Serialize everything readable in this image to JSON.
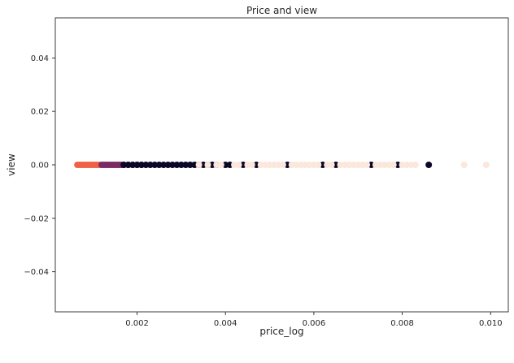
{
  "chart_data": {
    "type": "scatter",
    "title": "Price and view",
    "xlabel": "price_log",
    "ylabel": "view",
    "xlim": [
      0.00015,
      0.0104
    ],
    "ylim": [
      -0.055,
      0.055
    ],
    "x_ticks": [
      0.002,
      0.004,
      0.006,
      0.008,
      0.01
    ],
    "x_tick_labels": [
      "0.002",
      "0.004",
      "0.006",
      "0.008",
      "0.010"
    ],
    "y_ticks": [
      -0.04,
      -0.02,
      0.0,
      0.02,
      0.04
    ],
    "y_tick_labels": [
      "−0.04",
      "−0.02",
      "0.00",
      "0.02",
      "0.04"
    ],
    "grid": false,
    "colors": {
      "cluster_orange": "#ef6147",
      "cluster_purple": "#7a2a64",
      "cluster_dark": "#0b0726",
      "cluster_cream": "#fbe7db"
    },
    "series": [
      {
        "color": "#ef6147",
        "x": [
          0.00065,
          0.0007,
          0.00075,
          0.0008,
          0.00085,
          0.0009,
          0.00095,
          0.001,
          0.00105,
          0.0011,
          0.00115
        ],
        "y": [
          0,
          0,
          0,
          0,
          0,
          0,
          0,
          0,
          0,
          0,
          0
        ]
      },
      {
        "color": "#7a2a64",
        "x": [
          0.0012,
          0.00125,
          0.0013,
          0.00135,
          0.0014,
          0.00145,
          0.0015,
          0.00155,
          0.0016,
          0.00165,
          0.0017,
          0.0018,
          0.0019,
          0.002,
          0.0021
        ],
        "y": [
          0,
          0,
          0,
          0,
          0,
          0,
          0,
          0,
          0,
          0,
          0,
          0,
          0,
          0,
          0
        ]
      },
      {
        "color": "#0b0726",
        "x": [
          0.0017,
          0.0018,
          0.0019,
          0.002,
          0.0021,
          0.0022,
          0.0023,
          0.0024,
          0.0025,
          0.0026,
          0.0027,
          0.0028,
          0.0029,
          0.003,
          0.0031,
          0.0032,
          0.0033,
          0.0034,
          0.0035,
          0.0036,
          0.0037,
          0.0038,
          0.004,
          0.0041,
          0.0044,
          0.0047,
          0.0054,
          0.0062,
          0.0065,
          0.0073,
          0.0079,
          0.0086
        ],
        "y": [
          0,
          0,
          0,
          0,
          0,
          0,
          0,
          0,
          0,
          0,
          0,
          0,
          0,
          0,
          0,
          0,
          0,
          0,
          0,
          0,
          0,
          0,
          0,
          0,
          0,
          0,
          0,
          0,
          0,
          0,
          0,
          0
        ]
      },
      {
        "color": "#fbe7db",
        "x": [
          0.0034,
          0.0036,
          0.0038,
          0.0039,
          0.0042,
          0.0043,
          0.0045,
          0.0046,
          0.0048,
          0.0049,
          0.005,
          0.0051,
          0.0052,
          0.0053,
          0.0055,
          0.0056,
          0.0057,
          0.0058,
          0.0059,
          0.006,
          0.0061,
          0.0063,
          0.0064,
          0.0066,
          0.0067,
          0.0068,
          0.0069,
          0.007,
          0.0071,
          0.0072,
          0.0074,
          0.0075,
          0.0076,
          0.0077,
          0.0078,
          0.008,
          0.0081,
          0.0082,
          0.0083,
          0.0094,
          0.0099
        ],
        "y": [
          0,
          0,
          0,
          0,
          0,
          0,
          0,
          0,
          0,
          0,
          0,
          0,
          0,
          0,
          0,
          0,
          0,
          0,
          0,
          0,
          0,
          0,
          0,
          0,
          0,
          0,
          0,
          0,
          0,
          0,
          0,
          0,
          0,
          0,
          0,
          0,
          0,
          0,
          0,
          0,
          0
        ]
      }
    ]
  }
}
